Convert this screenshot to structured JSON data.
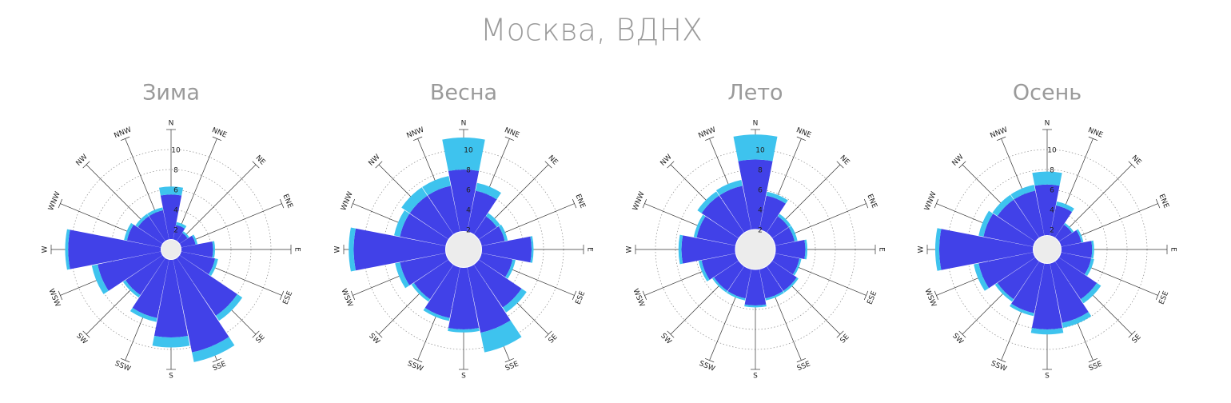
{
  "title": "Москва, ВДНХ",
  "chart_data": [
    {
      "type": "windrose",
      "title": "Зима",
      "categories": [
        "N",
        "NNE",
        "NE",
        "ENE",
        "E",
        "ESE",
        "SE",
        "SSE",
        "S",
        "SSW",
        "SW",
        "WSW",
        "W",
        "WNW",
        "NW",
        "NNW"
      ],
      "series": [
        {
          "color": "#4141e8",
          "values": [
            5.5,
            2.5,
            2,
            2.5,
            4.2,
            4.5,
            8,
            10.5,
            8.8,
            7,
            5.5,
            7.5,
            10.3,
            4.5,
            4,
            4
          ]
        },
        {
          "color": "#3ec3ee",
          "values": [
            0.8,
            0.3,
            0.2,
            0.2,
            0.2,
            0.3,
            0.6,
            1,
            1,
            0.4,
            0.3,
            0.6,
            0.3,
            0.3,
            0.3,
            0.3
          ]
        }
      ],
      "calm": 1,
      "rlim": [
        0,
        12
      ],
      "rticks": [
        2,
        4,
        6,
        8,
        10
      ]
    },
    {
      "type": "windrose",
      "title": "Весна",
      "categories": [
        "N",
        "NNE",
        "NE",
        "ENE",
        "E",
        "ESE",
        "SE",
        "SSE",
        "S",
        "SSW",
        "SW",
        "WSW",
        "W",
        "WNW",
        "NW",
        "NNW"
      ],
      "series": [
        {
          "color": "#4141e8",
          "values": [
            8,
            6,
            4,
            4.2,
            6.8,
            5,
            7,
            8.5,
            8,
            7,
            6,
            6.5,
            11,
            6.5,
            6.5,
            6.5
          ]
        },
        {
          "color": "#3ec3ee",
          "values": [
            3.2,
            0.8,
            0.4,
            0.3,
            0.2,
            0.3,
            0.6,
            2,
            0.3,
            0.3,
            0.3,
            0.5,
            0.5,
            0.6,
            1,
            1
          ]
        }
      ],
      "calm": 1.8,
      "rlim": [
        0,
        12
      ],
      "rticks": [
        2,
        4,
        6,
        8,
        10
      ]
    },
    {
      "type": "windrose",
      "title": "Лето",
      "categories": [
        "N",
        "NNE",
        "NE",
        "ENE",
        "E",
        "ESE",
        "SE",
        "SSE",
        "S",
        "SSW",
        "SW",
        "WSW",
        "W",
        "WNW",
        "NW",
        "NNW"
      ],
      "series": [
        {
          "color": "#4141e8",
          "values": [
            9,
            5.5,
            4,
            4,
            5,
            4.5,
            5,
            5,
            5.6,
            5,
            5,
            5.5,
            7.4,
            6,
            6.5,
            6.5
          ]
        },
        {
          "color": "#3ec3ee",
          "values": [
            2.5,
            0.4,
            0.3,
            0.3,
            0.2,
            0.2,
            0.2,
            0.2,
            0.2,
            0.2,
            0.2,
            0.3,
            0.3,
            0.3,
            0.5,
            0.6
          ]
        }
      ],
      "calm": 2,
      "rlim": [
        0,
        12
      ],
      "rticks": [
        2,
        4,
        6,
        8,
        10
      ]
    },
    {
      "type": "windrose",
      "title": "Осень",
      "categories": [
        "N",
        "NNE",
        "NE",
        "ENE",
        "E",
        "ESE",
        "SE",
        "SSE",
        "S",
        "SSW",
        "SW",
        "WSW",
        "W",
        "WNW",
        "NW",
        "NNW"
      ],
      "series": [
        {
          "color": "#4141e8",
          "values": [
            6.5,
            4.5,
            3,
            3.5,
            4.5,
            4.5,
            6,
            7.5,
            8,
            6.5,
            6,
            7,
            10.8,
            6.5,
            6,
            6
          ]
        },
        {
          "color": "#3ec3ee",
          "values": [
            1.3,
            0.4,
            0.2,
            0.2,
            0.2,
            0.3,
            0.5,
            0.5,
            0.5,
            0.3,
            0.3,
            0.5,
            0.4,
            0.5,
            0.6,
            0.6
          ]
        }
      ],
      "calm": 1.4,
      "rlim": [
        0,
        12
      ],
      "rticks": [
        2,
        4,
        6,
        8,
        10
      ]
    }
  ]
}
